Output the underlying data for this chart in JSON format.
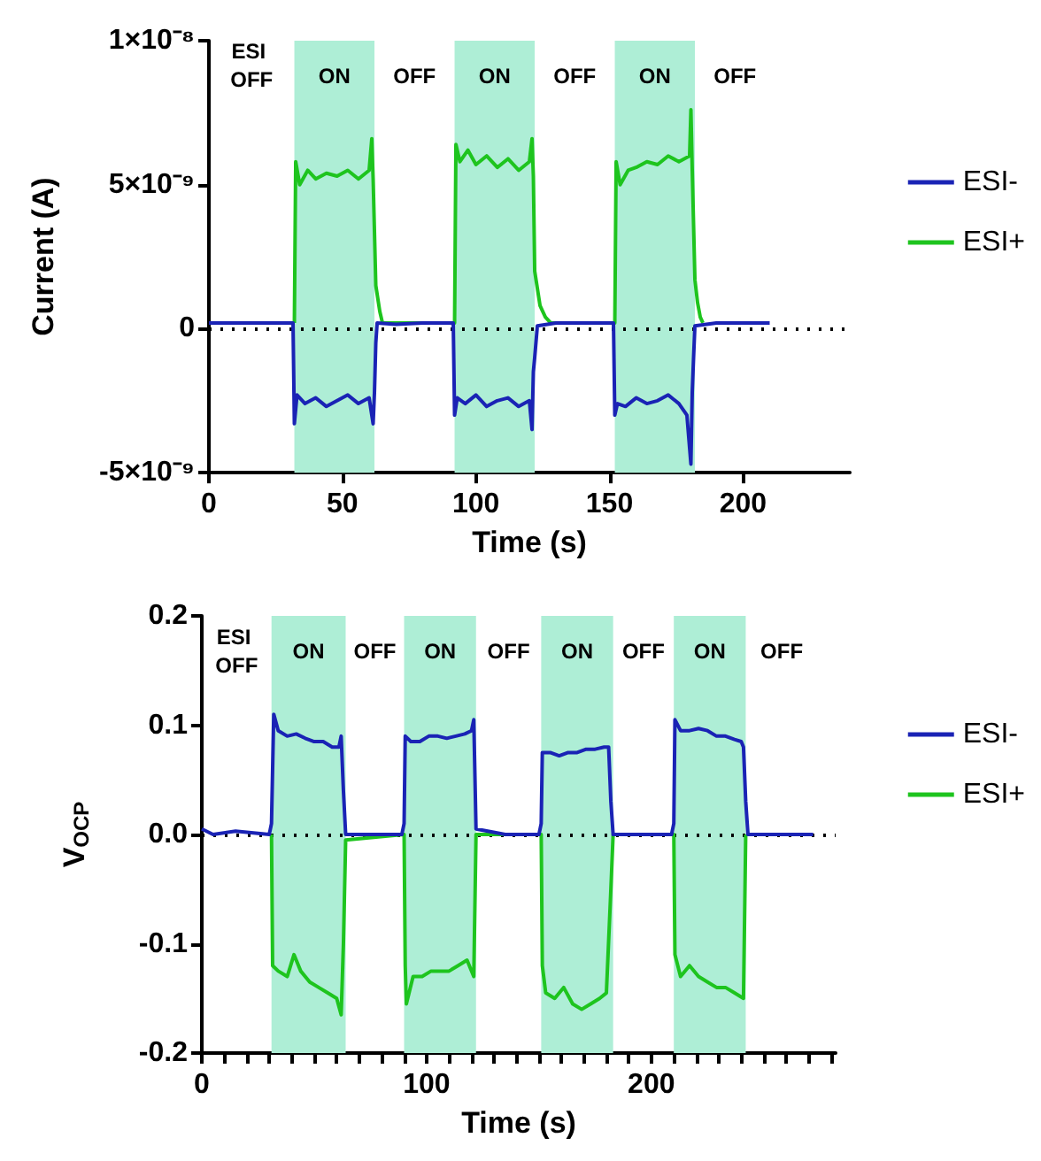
{
  "chart_data": [
    {
      "type": "line",
      "xlabel": "Time (s)",
      "ylabel": "Current (A)",
      "xlim": [
        0,
        240
      ],
      "xticks": [
        0,
        50,
        100,
        150,
        200
      ],
      "ylim": [
        -5e-09,
        1e-08
      ],
      "yticks": [
        {
          "value": -5e-09,
          "label": "-5×10⁻⁹"
        },
        0,
        {
          "value": 5e-09,
          "label": "5×10⁻⁹"
        },
        {
          "value": 1e-08,
          "label": "1×10⁻⁸"
        }
      ],
      "grid": false,
      "legend": "right",
      "marker": "none",
      "series": [
        {
          "name": "ESI-",
          "color": "#1a23b5",
          "x": [
            0,
            31.5,
            32,
            33,
            36,
            40,
            44,
            48,
            52,
            56,
            60,
            61.5,
            62,
            62.5,
            63,
            70,
            80,
            91.5,
            92,
            93,
            96,
            100,
            104,
            108,
            112,
            116,
            120,
            121,
            121.5,
            122,
            123,
            130,
            140,
            151.5,
            152,
            153,
            156,
            160,
            164,
            168,
            172,
            176,
            179,
            180.5,
            181,
            181.5,
            182,
            190,
            200,
            210
          ],
          "values": [
            2e-10,
            2e-10,
            -3.3e-09,
            -2.3e-09,
            -2.6e-09,
            -2.4e-09,
            -2.7e-09,
            -2.5e-09,
            -2.3e-09,
            -2.6e-09,
            -2.4e-09,
            -3.3e-09,
            -2.2e-09,
            -5e-10,
            2e-10,
            1.5e-10,
            2e-10,
            2e-10,
            -3e-09,
            -2.4e-09,
            -2.6e-09,
            -2.3e-09,
            -2.7e-09,
            -2.5e-09,
            -2.4e-09,
            -2.7e-09,
            -2.5e-09,
            -3.5e-09,
            -1.5e-09,
            -1e-09,
            1e-10,
            2e-10,
            2e-10,
            2e-10,
            -3e-09,
            -2.6e-09,
            -2.7e-09,
            -2.4e-09,
            -2.6e-09,
            -2.5e-09,
            -2.3e-09,
            -2.6e-09,
            -3e-09,
            -4.7e-09,
            -2.2e-09,
            -1e-09,
            1e-10,
            2e-10,
            2e-10,
            2e-10
          ]
        },
        {
          "name": "ESI+",
          "color": "#1ec41e",
          "x": [
            32,
            32.5,
            34,
            37,
            40,
            44,
            48,
            52,
            56,
            60,
            61,
            61.5,
            62.5,
            64,
            65,
            92,
            92.5,
            94,
            97,
            100,
            104,
            108,
            112,
            116,
            120,
            121,
            121.5,
            122,
            124,
            126,
            128,
            152,
            152.5,
            154,
            157,
            160,
            164,
            168,
            172,
            176,
            180,
            180.5,
            181,
            182,
            183,
            184,
            185
          ],
          "values": [
            2e-10,
            5.8e-09,
            5e-09,
            5.5e-09,
            5.2e-09,
            5.4e-09,
            5.3e-09,
            5.5e-09,
            5.2e-09,
            5.5e-09,
            6.6e-09,
            5.2e-09,
            1.5e-09,
            6e-10,
            2e-10,
            2e-10,
            6.4e-09,
            5.8e-09,
            6.2e-09,
            5.7e-09,
            6e-09,
            5.6e-09,
            5.9e-09,
            5.5e-09,
            5.8e-09,
            6.6e-09,
            5.3e-09,
            2e-09,
            8e-10,
            4e-10,
            2e-10,
            2e-10,
            5.8e-09,
            5e-09,
            5.5e-09,
            5.6e-09,
            5.8e-09,
            5.7e-09,
            6e-09,
            5.8e-09,
            6e-09,
            7.6e-09,
            5.5e-09,
            1.7e-09,
            9e-10,
            4e-10,
            2e-10
          ]
        }
      ],
      "ref_lines": [
        {
          "axis": "y",
          "value": 0,
          "line_style": "dotted",
          "color": "#000000"
        }
      ],
      "bands": [
        {
          "axis": "x",
          "from": 32,
          "to": 62,
          "label": "ON",
          "color": "#aeeed6"
        },
        {
          "axis": "x",
          "from": 92,
          "to": 122,
          "label": "ON",
          "color": "#aeeed6"
        },
        {
          "axis": "x",
          "from": 152,
          "to": 182,
          "label": "ON",
          "color": "#aeeed6"
        }
      ],
      "annotations": [
        "ESI OFF",
        "OFF",
        "OFF",
        "OFF"
      ]
    },
    {
      "type": "line",
      "xlabel": "Time (s)",
      "ylabel": "V$_{OCP}$",
      "xlim": [
        0,
        282
      ],
      "xticks": [
        0,
        {
          "value": 10,
          "label": null
        },
        {
          "value": 20,
          "label": null
        },
        {
          "value": 30,
          "label": null
        },
        {
          "value": 40,
          "label": null
        },
        {
          "value": 50,
          "label": null
        },
        {
          "value": 60,
          "label": null
        },
        {
          "value": 70,
          "label": null
        },
        {
          "value": 80,
          "label": null
        },
        {
          "value": 90,
          "label": null
        },
        100,
        {
          "value": 110,
          "label": null
        },
        {
          "value": 120,
          "label": null
        },
        {
          "value": 130,
          "label": null
        },
        {
          "value": 140,
          "label": null
        },
        {
          "value": 150,
          "label": null
        },
        {
          "value": 160,
          "label": null
        },
        {
          "value": 170,
          "label": null
        },
        {
          "value": 180,
          "label": null
        },
        {
          "value": 190,
          "label": null
        },
        200,
        {
          "value": 210,
          "label": null
        },
        {
          "value": 220,
          "label": null
        },
        {
          "value": 230,
          "label": null
        },
        {
          "value": 240,
          "label": null
        },
        {
          "value": 250,
          "label": null
        },
        {
          "value": 260,
          "label": null
        },
        {
          "value": 270,
          "label": null
        },
        {
          "value": 280,
          "label": null
        }
      ],
      "ylim": [
        -0.2,
        0.2
      ],
      "yticks": [
        {
          "value": -0.2,
          "label": "-0.2"
        },
        {
          "value": -0.1,
          "label": "-0.1"
        },
        {
          "value": 0,
          "label": "0.0"
        },
        {
          "value": 0.1,
          "label": "0.1"
        },
        {
          "value": 0.2,
          "label": "0.2"
        }
      ],
      "grid": false,
      "legend": "right",
      "marker": "none",
      "series": [
        {
          "name": "ESI-",
          "color": "#1a23b5",
          "x": [
            0,
            5,
            15,
            30,
            31,
            32,
            34,
            38,
            42,
            46,
            50,
            54,
            58,
            61,
            62,
            63,
            64,
            75,
            89,
            90,
            90.5,
            93,
            97,
            101,
            105,
            109,
            113,
            117,
            120,
            121,
            122,
            135,
            150,
            151,
            151.5,
            155,
            159,
            163,
            167,
            171,
            175,
            179,
            181,
            182,
            183,
            195,
            209,
            210,
            210.5,
            213,
            217,
            221,
            225,
            229,
            233,
            237,
            240,
            241,
            242,
            243,
            255,
            272
          ],
          "values": [
            0.005,
            0,
            0.003,
            0,
            0.01,
            0.11,
            0.095,
            0.09,
            0.092,
            0.088,
            0.085,
            0.085,
            0.08,
            0.08,
            0.09,
            0.04,
            0,
            0,
            0,
            0.01,
            0.09,
            0.085,
            0.085,
            0.09,
            0.09,
            0.088,
            0.09,
            0.092,
            0.095,
            0.105,
            0.005,
            0,
            0,
            0.01,
            0.075,
            0.075,
            0.072,
            0.075,
            0.075,
            0.078,
            0.078,
            0.08,
            0.08,
            0.03,
            0,
            0,
            0,
            0.01,
            0.105,
            0.095,
            0.095,
            0.097,
            0.095,
            0.09,
            0.09,
            0.087,
            0.085,
            0.08,
            0.03,
            0,
            0,
            0
          ]
        },
        {
          "name": "ESI+",
          "color": "#1ec41e",
          "x": [
            31,
            31.5,
            34,
            38,
            41,
            44,
            48,
            52,
            56,
            60,
            62,
            63,
            64,
            90,
            90.5,
            91,
            94,
            98,
            102,
            106,
            110,
            114,
            118,
            121,
            122,
            151,
            151.5,
            153,
            157,
            161,
            165,
            169,
            173,
            177,
            180,
            182,
            183,
            210,
            210.5,
            213,
            217,
            221,
            225,
            229,
            233,
            237,
            241,
            242
          ],
          "values": [
            0,
            -0.12,
            -0.125,
            -0.13,
            -0.11,
            -0.125,
            -0.135,
            -0.14,
            -0.145,
            -0.15,
            -0.165,
            -0.1,
            -0.005,
            0,
            -0.12,
            -0.155,
            -0.13,
            -0.13,
            -0.125,
            -0.125,
            -0.125,
            -0.12,
            -0.115,
            -0.13,
            0,
            0,
            -0.12,
            -0.145,
            -0.15,
            -0.14,
            -0.155,
            -0.16,
            -0.155,
            -0.15,
            -0.145,
            -0.05,
            0,
            0,
            -0.11,
            -0.13,
            -0.12,
            -0.13,
            -0.135,
            -0.14,
            -0.14,
            -0.145,
            -0.15,
            0
          ]
        }
      ],
      "ref_lines": [
        {
          "axis": "y",
          "value": 0,
          "line_style": "dotted",
          "color": "#000000"
        }
      ],
      "bands": [
        {
          "axis": "x",
          "from": 31,
          "to": 64,
          "label": "ON",
          "color": "#aeeed6"
        },
        {
          "axis": "x",
          "from": 90,
          "to": 122,
          "label": "ON",
          "color": "#aeeed6"
        },
        {
          "axis": "x",
          "from": 151,
          "to": 183,
          "label": "ON",
          "color": "#aeeed6"
        },
        {
          "axis": "x",
          "from": 210,
          "to": 242,
          "label": "ON",
          "color": "#aeeed6"
        }
      ],
      "annotations": [
        "ESI OFF",
        "OFF",
        "OFF",
        "OFF",
        "OFF"
      ]
    }
  ]
}
